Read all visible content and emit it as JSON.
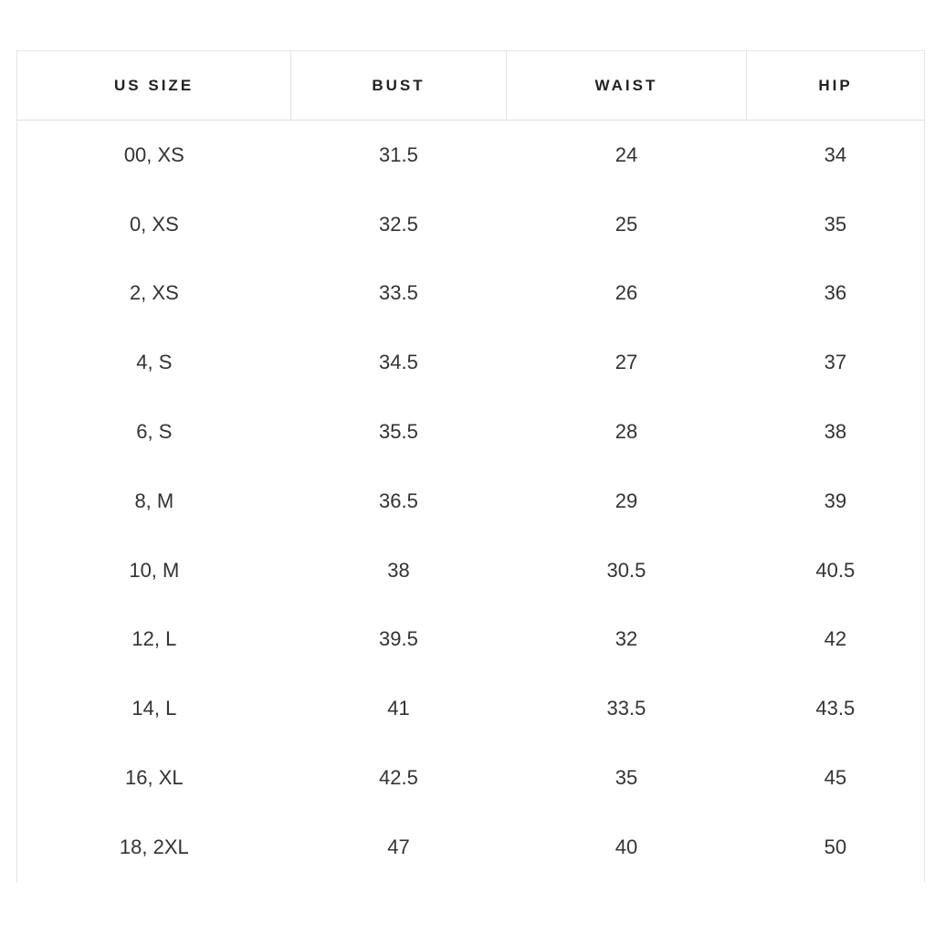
{
  "chart_data": {
    "type": "table",
    "columns": [
      "US SIZE",
      "BUST",
      "WAIST",
      "HIP"
    ],
    "column_keys": [
      "us-size",
      "bust",
      "waist",
      "hip"
    ],
    "rows": [
      [
        "00, XS",
        "31.5",
        "24",
        "34"
      ],
      [
        "0, XS",
        "32.5",
        "25",
        "35"
      ],
      [
        "2, XS",
        "33.5",
        "26",
        "36"
      ],
      [
        "4, S",
        "34.5",
        "27",
        "37"
      ],
      [
        "6, S",
        "35.5",
        "28",
        "38"
      ],
      [
        "8, M",
        "36.5",
        "29",
        "39"
      ],
      [
        "10, M",
        "38",
        "30.5",
        "40.5"
      ],
      [
        "12, L",
        "39.5",
        "32",
        "42"
      ],
      [
        "14, L",
        "41",
        "33.5",
        "43.5"
      ],
      [
        "16, XL",
        "42.5",
        "35",
        "45"
      ],
      [
        "18, 2XL",
        "47",
        "40",
        "50"
      ]
    ]
  },
  "colors": {
    "border": "#e4e4e4",
    "header_text": "#222222",
    "body_text": "#333333",
    "background": "#ffffff"
  }
}
